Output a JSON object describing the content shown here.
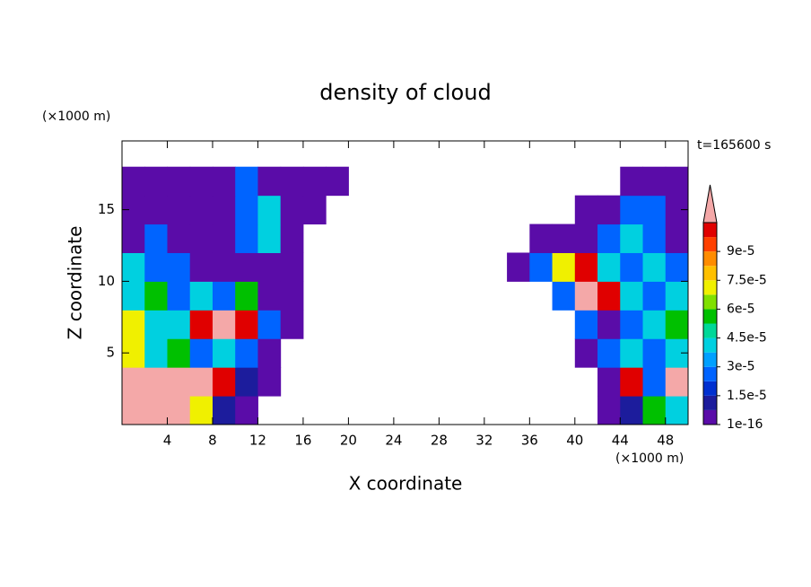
{
  "chart_data": {
    "type": "contour",
    "title": "density of cloud",
    "x_label": "X coordinate",
    "y_label": "Z coordinate",
    "x_unit": "(×1000 m)",
    "y_unit": "(×1000 m)",
    "time_label": "t=165600 s",
    "xlim": [
      0,
      50
    ],
    "ylim": [
      0,
      19.8
    ],
    "xticks": [
      4,
      8,
      12,
      16,
      20,
      24,
      28,
      32,
      36,
      40,
      44,
      48
    ],
    "yticks": [
      5,
      10,
      15
    ],
    "colorbar": {
      "levels": [
        1e-16,
        7.5e-06,
        1.5e-05,
        2.25e-05,
        3e-05,
        3.75e-05,
        4.5e-05,
        5.25e-05,
        6e-05,
        6.75e-05,
        7.5e-05,
        8.25e-05,
        9e-05,
        9.75e-05,
        0.000105
      ],
      "colors": [
        "#5a0ca8",
        "#1c1c9c",
        "#0030d0",
        "#0064ff",
        "#00a0ff",
        "#00d0e0",
        "#00d898",
        "#00c000",
        "#80e000",
        "#f0f000",
        "#ffc000",
        "#ff8c00",
        "#ff4000",
        "#e00000"
      ],
      "extend_color": "#f4a8a8",
      "ticks": [
        1e-16,
        {
          "value": 1.5e-05,
          "label": "1.5e-5"
        },
        {
          "value": 3e-05,
          "label": "3e-5"
        },
        {
          "value": 4.5e-05,
          "label": "4.5e-5"
        },
        {
          "value": 6e-05,
          "label": "6e-5"
        },
        {
          "value": 7.5e-05,
          "label": "7.5e-5"
        },
        {
          "value": 9e-05,
          "label": "9e-5"
        }
      ]
    },
    "field": {
      "x": [
        1,
        3,
        5,
        7,
        9,
        11,
        13,
        15,
        17,
        19,
        21,
        23,
        25,
        27,
        29,
        31,
        33,
        35,
        37,
        39,
        41,
        43,
        45,
        47,
        49
      ],
      "z": [
        1,
        3,
        5,
        7,
        9,
        11,
        13,
        15,
        17
      ],
      "values": [
        [
          0.00012,
          0.00012,
          0.00012,
          7e-05,
          1.2e-05,
          4e-06,
          null,
          null,
          null,
          null,
          null,
          null,
          null,
          null,
          null,
          null,
          null,
          null,
          null,
          null,
          null,
          4e-06,
          1.2e-05,
          5.5e-05,
          4e-05
        ],
        [
          0.00012,
          0.00012,
          0.00012,
          0.00012,
          0.0001,
          1.2e-05,
          4e-06,
          null,
          null,
          null,
          null,
          null,
          null,
          null,
          null,
          null,
          null,
          null,
          null,
          null,
          null,
          4e-06,
          0.0001,
          2.5e-05,
          0.00012
        ],
        [
          7e-05,
          4e-05,
          5.5e-05,
          2.5e-05,
          4e-05,
          2.5e-05,
          4e-06,
          null,
          null,
          null,
          null,
          null,
          null,
          null,
          null,
          null,
          null,
          null,
          null,
          null,
          4e-06,
          2.5e-05,
          4e-05,
          2.5e-05,
          4e-05
        ],
        [
          7e-05,
          4e-05,
          4e-05,
          0.0001,
          0.00012,
          0.0001,
          2.5e-05,
          4e-06,
          null,
          null,
          null,
          null,
          null,
          null,
          null,
          null,
          null,
          null,
          null,
          null,
          2.5e-05,
          4e-06,
          2.5e-05,
          4e-05,
          5.5e-05
        ],
        [
          4e-05,
          5.5e-05,
          2.5e-05,
          4e-05,
          2.5e-05,
          5.5e-05,
          4e-06,
          4e-06,
          null,
          null,
          null,
          null,
          null,
          null,
          null,
          null,
          null,
          null,
          null,
          2.5e-05,
          0.00012,
          0.0001,
          4e-05,
          2.5e-05,
          4e-05
        ],
        [
          4e-05,
          2.5e-05,
          2.5e-05,
          4e-06,
          4e-06,
          4e-06,
          4e-06,
          4e-06,
          null,
          null,
          null,
          null,
          null,
          null,
          null,
          null,
          null,
          4e-06,
          2.5e-05,
          7e-05,
          0.0001,
          4e-05,
          2.5e-05,
          4e-05,
          2.5e-05
        ],
        [
          4e-06,
          2.5e-05,
          4e-06,
          4e-06,
          4e-06,
          2.5e-05,
          4e-05,
          4e-06,
          null,
          null,
          null,
          null,
          null,
          null,
          null,
          null,
          null,
          null,
          4e-06,
          4e-06,
          4e-06,
          2.5e-05,
          4e-05,
          2.5e-05,
          4e-06
        ],
        [
          4e-06,
          4e-06,
          4e-06,
          4e-06,
          4e-06,
          2.5e-05,
          4e-05,
          4e-06,
          4e-06,
          null,
          null,
          null,
          null,
          null,
          null,
          null,
          null,
          null,
          null,
          null,
          4e-06,
          4e-06,
          2.5e-05,
          2.5e-05,
          4e-06
        ],
        [
          4e-06,
          4e-06,
          4e-06,
          4e-06,
          4e-06,
          2.5e-05,
          4e-06,
          4e-06,
          4e-06,
          4e-06,
          null,
          null,
          null,
          null,
          null,
          null,
          null,
          null,
          null,
          null,
          null,
          null,
          4e-06,
          4e-06,
          4e-06
        ]
      ]
    }
  }
}
